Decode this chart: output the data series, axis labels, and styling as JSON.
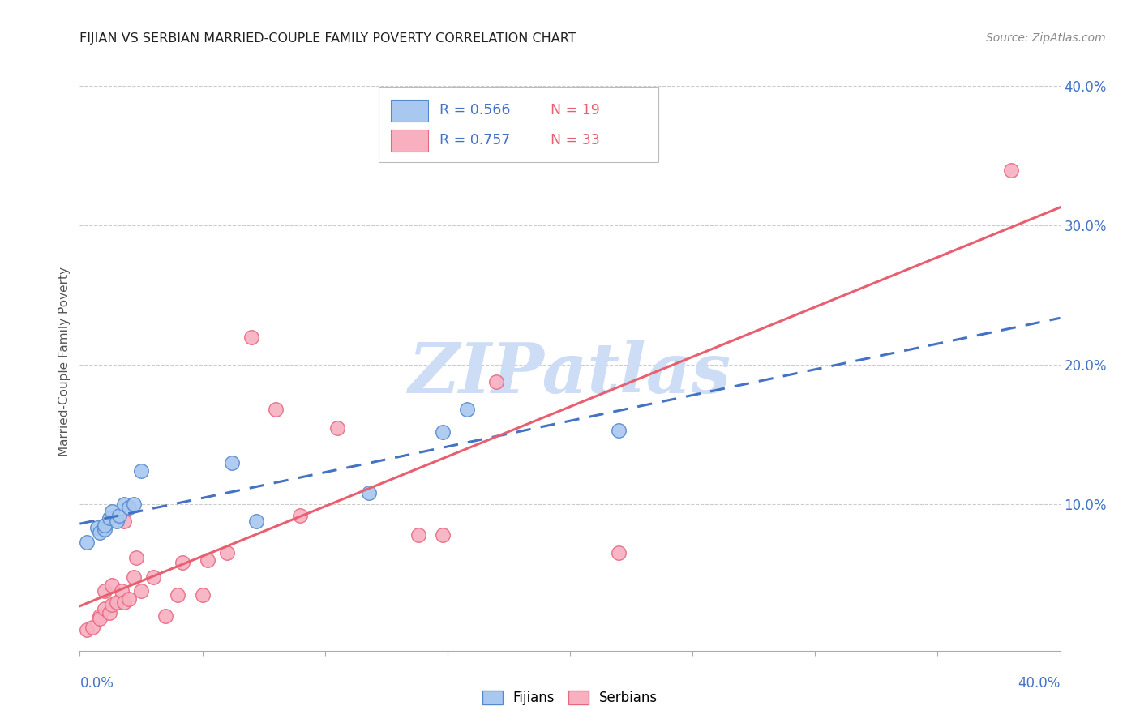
{
  "title": "FIJIAN VS SERBIAN MARRIED-COUPLE FAMILY POVERTY CORRELATION CHART",
  "source": "Source: ZipAtlas.com",
  "ylabel": "Married-Couple Family Poverty",
  "ytick_values": [
    0.1,
    0.2,
    0.3,
    0.4
  ],
  "ytick_labels": [
    "10.0%",
    "20.0%",
    "30.0%",
    "40.0%"
  ],
  "xtick_values": [
    0.0,
    0.05,
    0.1,
    0.15,
    0.2,
    0.25,
    0.3,
    0.35,
    0.4
  ],
  "xlim": [
    0,
    0.4
  ],
  "ylim": [
    -0.005,
    0.41
  ],
  "fijian_color": "#a8c8f0",
  "serbian_color": "#f8b0c0",
  "fijian_edge_color": "#5588cc",
  "serbian_edge_color": "#e86880",
  "fijian_line_color": "#4472c4",
  "serbian_line_color": "#e86070",
  "watermark": "ZIPatlas",
  "watermark_color": "#ccddf5",
  "fijian_R": "0.566",
  "fijian_N": "19",
  "serbian_R": "0.757",
  "serbian_N": "33",
  "fijian_x": [
    0.003,
    0.007,
    0.008,
    0.01,
    0.01,
    0.012,
    0.013,
    0.015,
    0.016,
    0.018,
    0.02,
    0.022,
    0.025,
    0.062,
    0.072,
    0.118,
    0.148,
    0.158,
    0.22
  ],
  "fijian_y": [
    0.073,
    0.083,
    0.08,
    0.082,
    0.085,
    0.09,
    0.095,
    0.088,
    0.092,
    0.1,
    0.098,
    0.1,
    0.124,
    0.13,
    0.088,
    0.108,
    0.152,
    0.168,
    0.153
  ],
  "serbian_x": [
    0.003,
    0.005,
    0.008,
    0.008,
    0.01,
    0.01,
    0.012,
    0.013,
    0.013,
    0.015,
    0.017,
    0.018,
    0.018,
    0.02,
    0.022,
    0.023,
    0.025,
    0.03,
    0.035,
    0.04,
    0.042,
    0.05,
    0.052,
    0.06,
    0.07,
    0.08,
    0.09,
    0.105,
    0.138,
    0.148,
    0.17,
    0.22,
    0.38
  ],
  "serbian_y": [
    0.01,
    0.012,
    0.02,
    0.018,
    0.025,
    0.038,
    0.022,
    0.028,
    0.042,
    0.03,
    0.038,
    0.03,
    0.088,
    0.032,
    0.048,
    0.062,
    0.038,
    0.048,
    0.02,
    0.035,
    0.058,
    0.035,
    0.06,
    0.065,
    0.22,
    0.168,
    0.092,
    0.155,
    0.078,
    0.078,
    0.188,
    0.065,
    0.34
  ]
}
